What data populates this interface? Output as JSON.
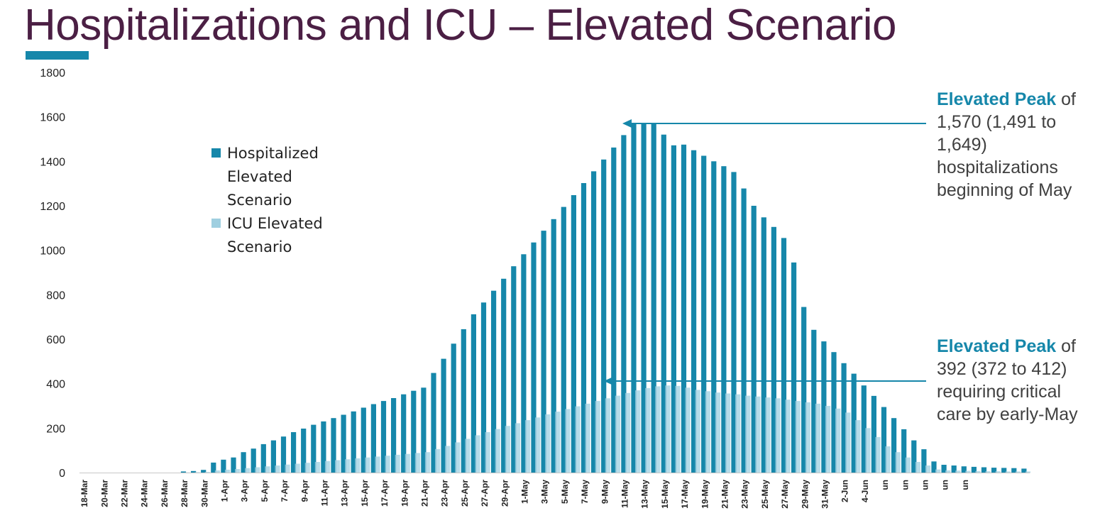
{
  "title": "Hospitalizations and ICU – Elevated Scenario",
  "colors": {
    "hosp": "#1687aa",
    "icu": "#9fcfe0",
    "accent": "#1687aa",
    "title": "#4b1f44"
  },
  "legend": [
    {
      "label": "Hospitalized Elevated Scenario"
    },
    {
      "label": "ICU Elevated Scenario"
    }
  ],
  "annotations": [
    {
      "bold": "Elevated Peak",
      "text": "of 1,570 (1,491 to 1,649) hospitalizations beginning of May"
    },
    {
      "bold": "Elevated Peak",
      "text": "of 392 (372 to 412) requiring critical care by early-May"
    }
  ],
  "chart_data": {
    "type": "bar",
    "title": "Hospitalizations and ICU – Elevated Scenario",
    "ylim": [
      0,
      1800
    ],
    "yticks": [
      0,
      200,
      400,
      600,
      800,
      1000,
      1200,
      1400,
      1600,
      1800
    ],
    "xtick_labels": [
      "18-Mar",
      "20-Mar",
      "22-Mar",
      "24-Mar",
      "26-Mar",
      "28-Mar",
      "30-Mar",
      "1-Apr",
      "3-Apr",
      "5-Apr",
      "7-Apr",
      "9-Apr",
      "11-Apr",
      "13-Apr",
      "15-Apr",
      "17-Apr",
      "19-Apr",
      "21-Apr",
      "23-Apr",
      "25-Apr",
      "27-Apr",
      "29-Apr",
      "1-May",
      "3-May",
      "5-May",
      "7-May",
      "9-May",
      "11-May",
      "13-May",
      "15-May",
      "17-May",
      "19-May",
      "21-May",
      "23-May",
      "25-May",
      "27-May",
      "29-May",
      "31-May",
      "2-Jun",
      "4-Jun",
      "un",
      "un",
      "un",
      "un",
      "un"
    ],
    "series": [
      {
        "name": "Hospitalized Elevated Scenario",
        "values": [
          0,
          0,
          0,
          0,
          0,
          0,
          0,
          0,
          0,
          0,
          5,
          7,
          12,
          45,
          58,
          68,
          92,
          108,
          128,
          145,
          162,
          182,
          198,
          215,
          230,
          245,
          260,
          275,
          292,
          308,
          322,
          335,
          352,
          368,
          382,
          448,
          512,
          580,
          645,
          712,
          765,
          818,
          872,
          928,
          982,
          1035,
          1088,
          1140,
          1195,
          1248,
          1302,
          1355,
          1408,
          1462,
          1518,
          1568,
          1570,
          1568,
          1520,
          1472,
          1475,
          1450,
          1425,
          1400,
          1378,
          1352,
          1278,
          1200,
          1148,
          1105,
          1055,
          945,
          745,
          642,
          590,
          542,
          492,
          445,
          392,
          345,
          295,
          245,
          195,
          145,
          105,
          50,
          35,
          32,
          28,
          26,
          24,
          22,
          21,
          20,
          18
        ]
      },
      {
        "name": "ICU Elevated Scenario",
        "values": [
          0,
          0,
          0,
          0,
          0,
          0,
          0,
          0,
          0,
          0,
          1,
          2,
          3,
          10,
          13,
          16,
          20,
          24,
          28,
          32,
          36,
          40,
          44,
          48,
          52,
          56,
          60,
          64,
          68,
          72,
          76,
          80,
          84,
          88,
          92,
          106,
          120,
          136,
          152,
          168,
          182,
          196,
          210,
          222,
          236,
          248,
          262,
          274,
          286,
          298,
          310,
          322,
          334,
          346,
          358,
          370,
          380,
          388,
          392,
          390,
          382,
          372,
          366,
          360,
          356,
          352,
          346,
          342,
          338,
          334,
          328,
          322,
          316,
          310,
          300,
          288,
          270,
          236,
          200,
          160,
          118,
          92,
          68,
          48,
          32,
          14,
          10,
          9,
          8,
          7,
          6,
          6,
          5,
          5,
          5
        ]
      }
    ]
  }
}
